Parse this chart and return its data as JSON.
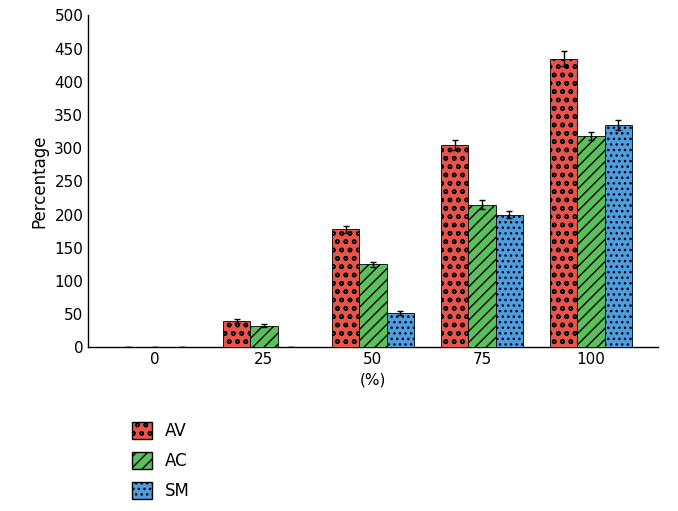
{
  "categories": [
    0,
    25,
    50,
    75,
    100
  ],
  "AV_values": [
    0,
    40,
    178,
    305,
    435
  ],
  "AC_values": [
    0,
    33,
    125,
    215,
    318
  ],
  "SM_values": [
    0,
    0,
    52,
    200,
    335
  ],
  "AV_errors": [
    0,
    3,
    5,
    8,
    12
  ],
  "AC_errors": [
    0,
    2,
    4,
    7,
    6
  ],
  "SM_errors": [
    0,
    0,
    3,
    5,
    8
  ],
  "AV_color": "#e8534a",
  "AC_color": "#5bbf5b",
  "SM_color": "#4d9de0",
  "ylabel": "Percentage",
  "xlabel": "(%)",
  "ylim": [
    0,
    500
  ],
  "yticks": [
    0,
    50,
    100,
    150,
    200,
    250,
    300,
    350,
    400,
    450,
    500
  ],
  "bar_width": 0.25,
  "legend_labels": [
    "AV",
    "AC",
    "SM"
  ],
  "background_color": "#ffffff"
}
